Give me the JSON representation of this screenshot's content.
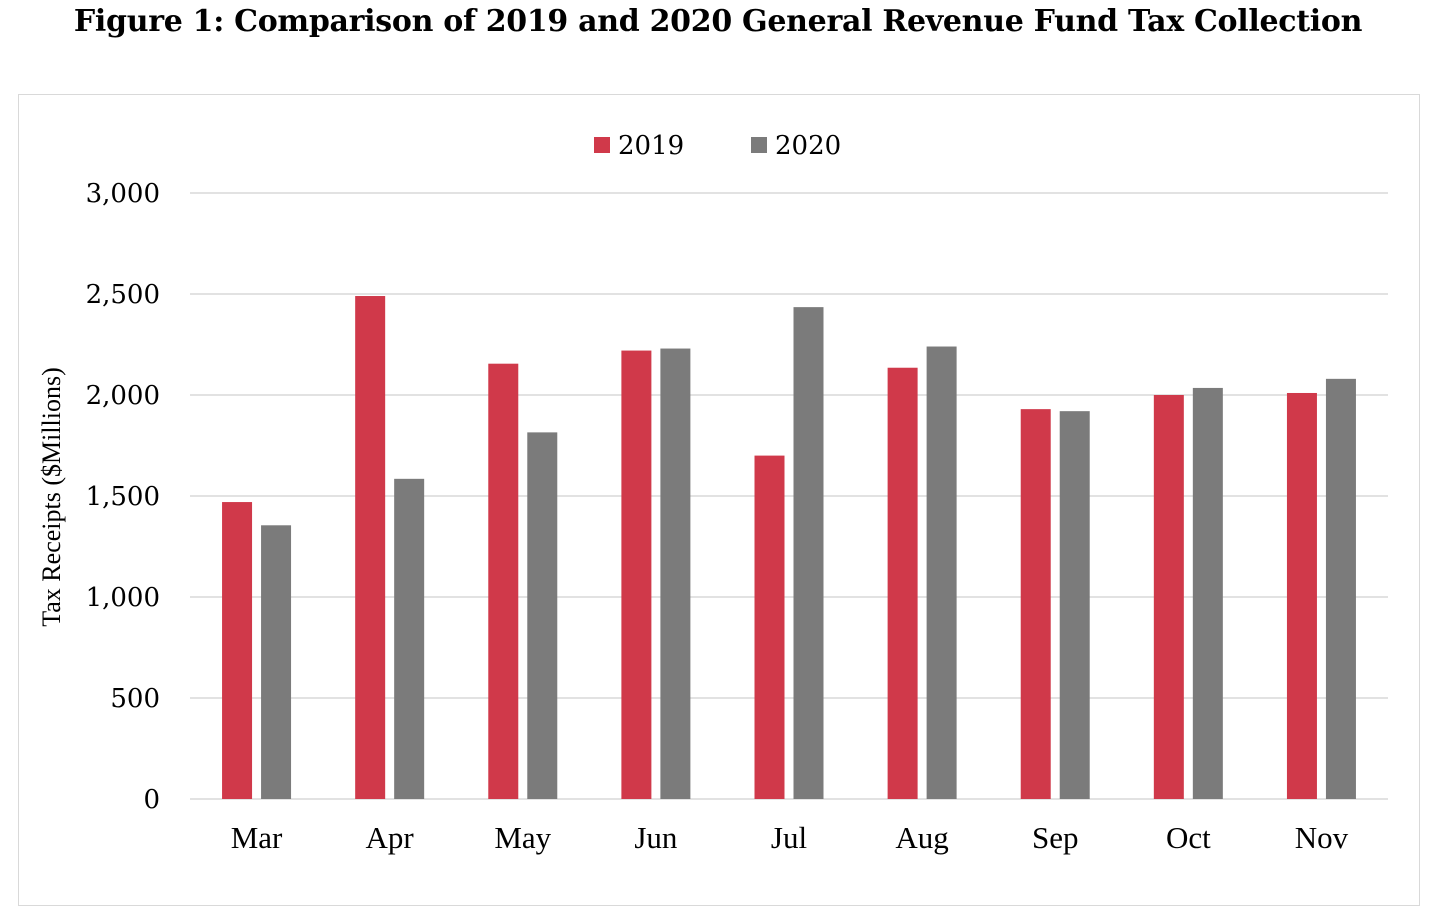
{
  "figure_title": "Figure 1: Comparison of 2019 and 2020 General Revenue Fund Tax Collection",
  "colors": {
    "s2019": "#d0394a",
    "s2020": "#7b7b7b",
    "grid": "#d9d9d9"
  },
  "chart_data": {
    "type": "bar",
    "title": "",
    "xlabel": "",
    "ylabel": "Tax Receipts ($Millions)",
    "ylim": [
      0,
      3000
    ],
    "yticks": [
      0,
      500,
      1000,
      1500,
      2000,
      2500,
      3000
    ],
    "ytick_labels": [
      "0",
      "500",
      "1,000",
      "1,500",
      "2,000",
      "2,500",
      "3,000"
    ],
    "grid": true,
    "legend_position": "top-center",
    "categories": [
      "Mar",
      "Apr",
      "May",
      "Jun",
      "Jul",
      "Aug",
      "Sep",
      "Oct",
      "Nov"
    ],
    "series": [
      {
        "name": "2019",
        "values": [
          1470,
          2490,
          2155,
          2220,
          1700,
          2135,
          1930,
          2000,
          2010
        ]
      },
      {
        "name": "2020",
        "values": [
          1355,
          1585,
          1815,
          2230,
          2435,
          2240,
          1920,
          2035,
          2080
        ]
      }
    ]
  }
}
